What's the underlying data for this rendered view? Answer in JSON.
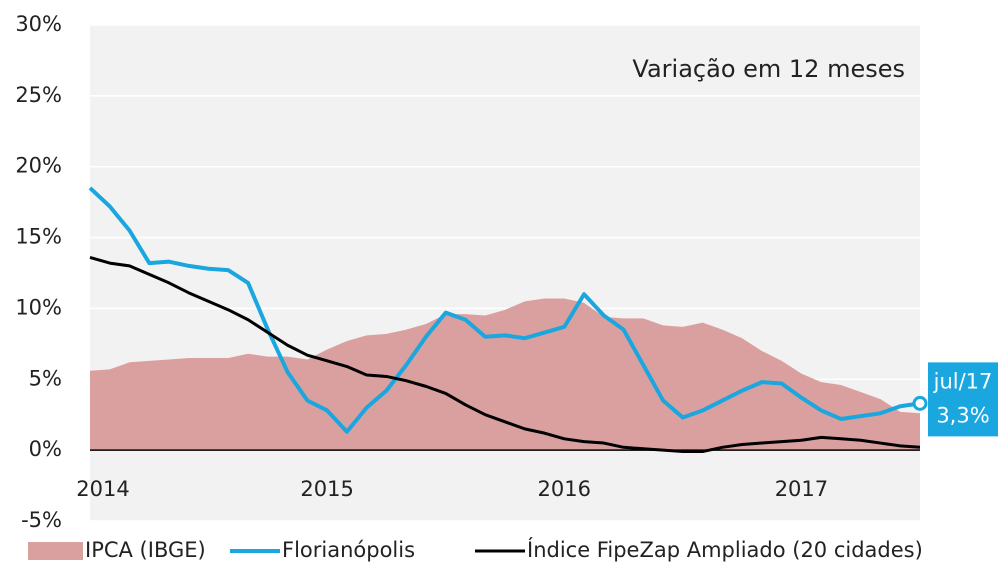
{
  "chart_data": {
    "type": "line",
    "annotation": "Variação em 12 meses",
    "end_annotation": "jul/17",
    "categories": [
      "2014",
      null,
      null,
      null,
      null,
      null,
      null,
      null,
      null,
      null,
      null,
      null,
      "2015",
      null,
      null,
      null,
      null,
      null,
      null,
      null,
      null,
      null,
      null,
      null,
      "2016",
      null,
      null,
      null,
      null,
      null,
      null,
      null,
      null,
      null,
      null,
      null,
      "2017",
      null,
      null,
      null,
      null,
      null,
      null
    ],
    "series": [
      {
        "name": "IPCA (IBGE)",
        "kind": "area",
        "color": "#d9a09f",
        "values": [
          5.6,
          5.7,
          6.2,
          6.3,
          6.4,
          6.5,
          6.5,
          6.5,
          6.8,
          6.6,
          6.6,
          6.4,
          7.1,
          7.7,
          8.1,
          8.2,
          8.5,
          8.9,
          9.6,
          9.6,
          9.5,
          9.9,
          10.5,
          10.7,
          10.7,
          10.4,
          9.4,
          9.3,
          9.3,
          8.8,
          8.7,
          9.0,
          8.5,
          7.9,
          7.0,
          6.3,
          5.4,
          4.8,
          4.6,
          4.1,
          3.6,
          2.7,
          2.6
        ]
      },
      {
        "name": "Florianópolis",
        "kind": "line",
        "color": "#1aa7e0",
        "values": [
          18.5,
          17.2,
          15.5,
          13.2,
          13.3,
          13.0,
          12.8,
          12.7,
          11.8,
          8.5,
          5.5,
          3.5,
          2.8,
          1.3,
          3.0,
          4.2,
          6.0,
          8.0,
          9.7,
          9.2,
          8.0,
          8.1,
          7.9,
          8.3,
          8.7,
          11.0,
          9.5,
          8.5,
          6.0,
          3.5,
          2.3,
          2.8,
          3.5,
          4.2,
          4.8,
          4.7,
          3.7,
          2.8,
          2.2,
          2.4,
          2.6,
          3.1,
          3.3
        ],
        "value_labels": [
          null,
          null,
          null,
          null,
          null,
          null,
          null,
          null,
          null,
          null,
          null,
          null,
          null,
          null,
          null,
          null,
          null,
          null,
          null,
          null,
          null,
          null,
          null,
          null,
          null,
          null,
          null,
          null,
          null,
          null,
          null,
          null,
          null,
          null,
          null,
          null,
          null,
          null,
          null,
          null,
          null,
          null,
          "3,3%"
        ]
      },
      {
        "name": "Índice FipeZap Ampliado (20 cidades)",
        "kind": "line",
        "color": "#000000",
        "values": [
          13.6,
          13.2,
          13.0,
          12.4,
          11.8,
          11.1,
          10.5,
          9.9,
          9.2,
          8.3,
          7.4,
          6.7,
          6.3,
          5.9,
          5.3,
          5.2,
          4.9,
          4.5,
          4.0,
          3.2,
          2.5,
          2.0,
          1.5,
          1.2,
          0.8,
          0.6,
          0.5,
          0.2,
          0.1,
          0.0,
          -0.1,
          -0.1,
          0.2,
          0.4,
          0.5,
          0.6,
          0.7,
          0.9,
          0.8,
          0.7,
          0.5,
          0.3,
          0.2
        ]
      }
    ],
    "ylim": [
      -5,
      30
    ],
    "yticks": [
      {
        "value": -5,
        "label": "-5%"
      },
      {
        "value": 0,
        "label": "0%"
      },
      {
        "value": 5,
        "label": "5%"
      },
      {
        "value": 10,
        "label": "10%"
      },
      {
        "value": 15,
        "label": "15%"
      },
      {
        "value": 20,
        "label": "20%"
      },
      {
        "value": 25,
        "label": "25%"
      },
      {
        "value": 30,
        "label": "30%"
      }
    ],
    "grid": true,
    "legend": "bottom"
  }
}
